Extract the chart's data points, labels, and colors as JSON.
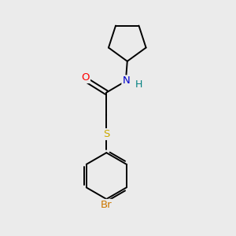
{
  "background_color": "#ebebeb",
  "bond_color": "#000000",
  "atom_colors": {
    "O": "#ff0000",
    "N": "#0000cc",
    "H": "#008080",
    "S": "#ccaa00",
    "Br": "#cc7700"
  },
  "figsize": [
    3.0,
    3.0
  ],
  "dpi": 100,
  "bond_lw": 1.4,
  "font_size": 9.5
}
